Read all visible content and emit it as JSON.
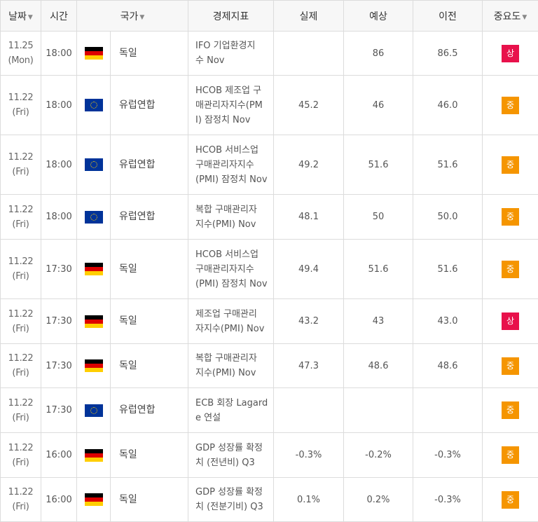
{
  "header": {
    "date": "날짜",
    "time": "시간",
    "country": "국가",
    "indicator": "경제지표",
    "actual": "실제",
    "forecast": "예상",
    "previous": "이전",
    "importance": "중요도",
    "sort_arrow": "▼"
  },
  "rows": [
    {
      "date_line1": "11.25",
      "date_line2": "(Mon)",
      "time": "18:00",
      "flag": "germany-flag-icon",
      "country": "독일",
      "indicator_lines": [
        "IFO 기업환경지",
        "수 Nov"
      ],
      "actual": "",
      "forecast": "86",
      "previous": "86.5",
      "importance": "상",
      "level": "high"
    },
    {
      "date_line1": "11.22",
      "date_line2": "(Fri)",
      "time": "18:00",
      "flag": "eu-flag-icon",
      "country": "유럽연합",
      "indicator_lines": [
        "HCOB 제조업 구",
        "매관리자지수(PM",
        "I) 잠정치 Nov"
      ],
      "actual": "45.2",
      "forecast": "46",
      "previous": "46.0",
      "importance": "중",
      "level": "mid"
    },
    {
      "date_line1": "11.22",
      "date_line2": "(Fri)",
      "time": "18:00",
      "flag": "eu-flag-icon",
      "country": "유럽연합",
      "indicator_lines": [
        "HCOB 서비스업",
        "구매관리자지수",
        "(PMI) 잠정치 Nov"
      ],
      "actual": "49.2",
      "forecast": "51.6",
      "previous": "51.6",
      "importance": "중",
      "level": "mid"
    },
    {
      "date_line1": "11.22",
      "date_line2": "(Fri)",
      "time": "18:00",
      "flag": "eu-flag-icon",
      "country": "유럽연합",
      "indicator_lines": [
        "복합 구매관리자",
        "지수(PMI) Nov"
      ],
      "actual": "48.1",
      "forecast": "50",
      "previous": "50.0",
      "importance": "중",
      "level": "mid"
    },
    {
      "date_line1": "11.22",
      "date_line2": "(Fri)",
      "time": "17:30",
      "flag": "germany-flag-icon",
      "country": "독일",
      "indicator_lines": [
        "HCOB 서비스업",
        "구매관리자지수",
        "(PMI) 잠정치 Nov"
      ],
      "actual": "49.4",
      "forecast": "51.6",
      "previous": "51.6",
      "importance": "중",
      "level": "mid"
    },
    {
      "date_line1": "11.22",
      "date_line2": "(Fri)",
      "time": "17:30",
      "flag": "germany-flag-icon",
      "country": "독일",
      "indicator_lines": [
        "제조업 구매관리",
        "자지수(PMI) Nov"
      ],
      "actual": "43.2",
      "forecast": "43",
      "previous": "43.0",
      "importance": "상",
      "level": "high"
    },
    {
      "date_line1": "11.22",
      "date_line2": "(Fri)",
      "time": "17:30",
      "flag": "germany-flag-icon",
      "country": "독일",
      "indicator_lines": [
        "복합 구매관리자",
        "지수(PMI) Nov"
      ],
      "actual": "47.3",
      "forecast": "48.6",
      "previous": "48.6",
      "importance": "중",
      "level": "mid"
    },
    {
      "date_line1": "11.22",
      "date_line2": "(Fri)",
      "time": "17:30",
      "flag": "eu-flag-icon",
      "country": "유럽연합",
      "indicator_lines": [
        "ECB 회장 Lagard",
        "e 연설"
      ],
      "actual": "",
      "forecast": "",
      "previous": "",
      "importance": "중",
      "level": "mid"
    },
    {
      "date_line1": "11.22",
      "date_line2": "(Fri)",
      "time": "16:00",
      "flag": "germany-flag-icon",
      "country": "독일",
      "indicator_lines": [
        "GDP 성장률 확정",
        "치 (전년비) Q3"
      ],
      "actual": "-0.3%",
      "forecast": "-0.2%",
      "previous": "-0.3%",
      "importance": "중",
      "level": "mid"
    },
    {
      "date_line1": "11.22",
      "date_line2": "(Fri)",
      "time": "16:00",
      "flag": "germany-flag-icon",
      "country": "독일",
      "indicator_lines": [
        "GDP 성장률 확정",
        "치 (전분기비) Q3"
      ],
      "actual": "0.1%",
      "forecast": "0.2%",
      "previous": "-0.3%",
      "importance": "중",
      "level": "mid"
    }
  ]
}
